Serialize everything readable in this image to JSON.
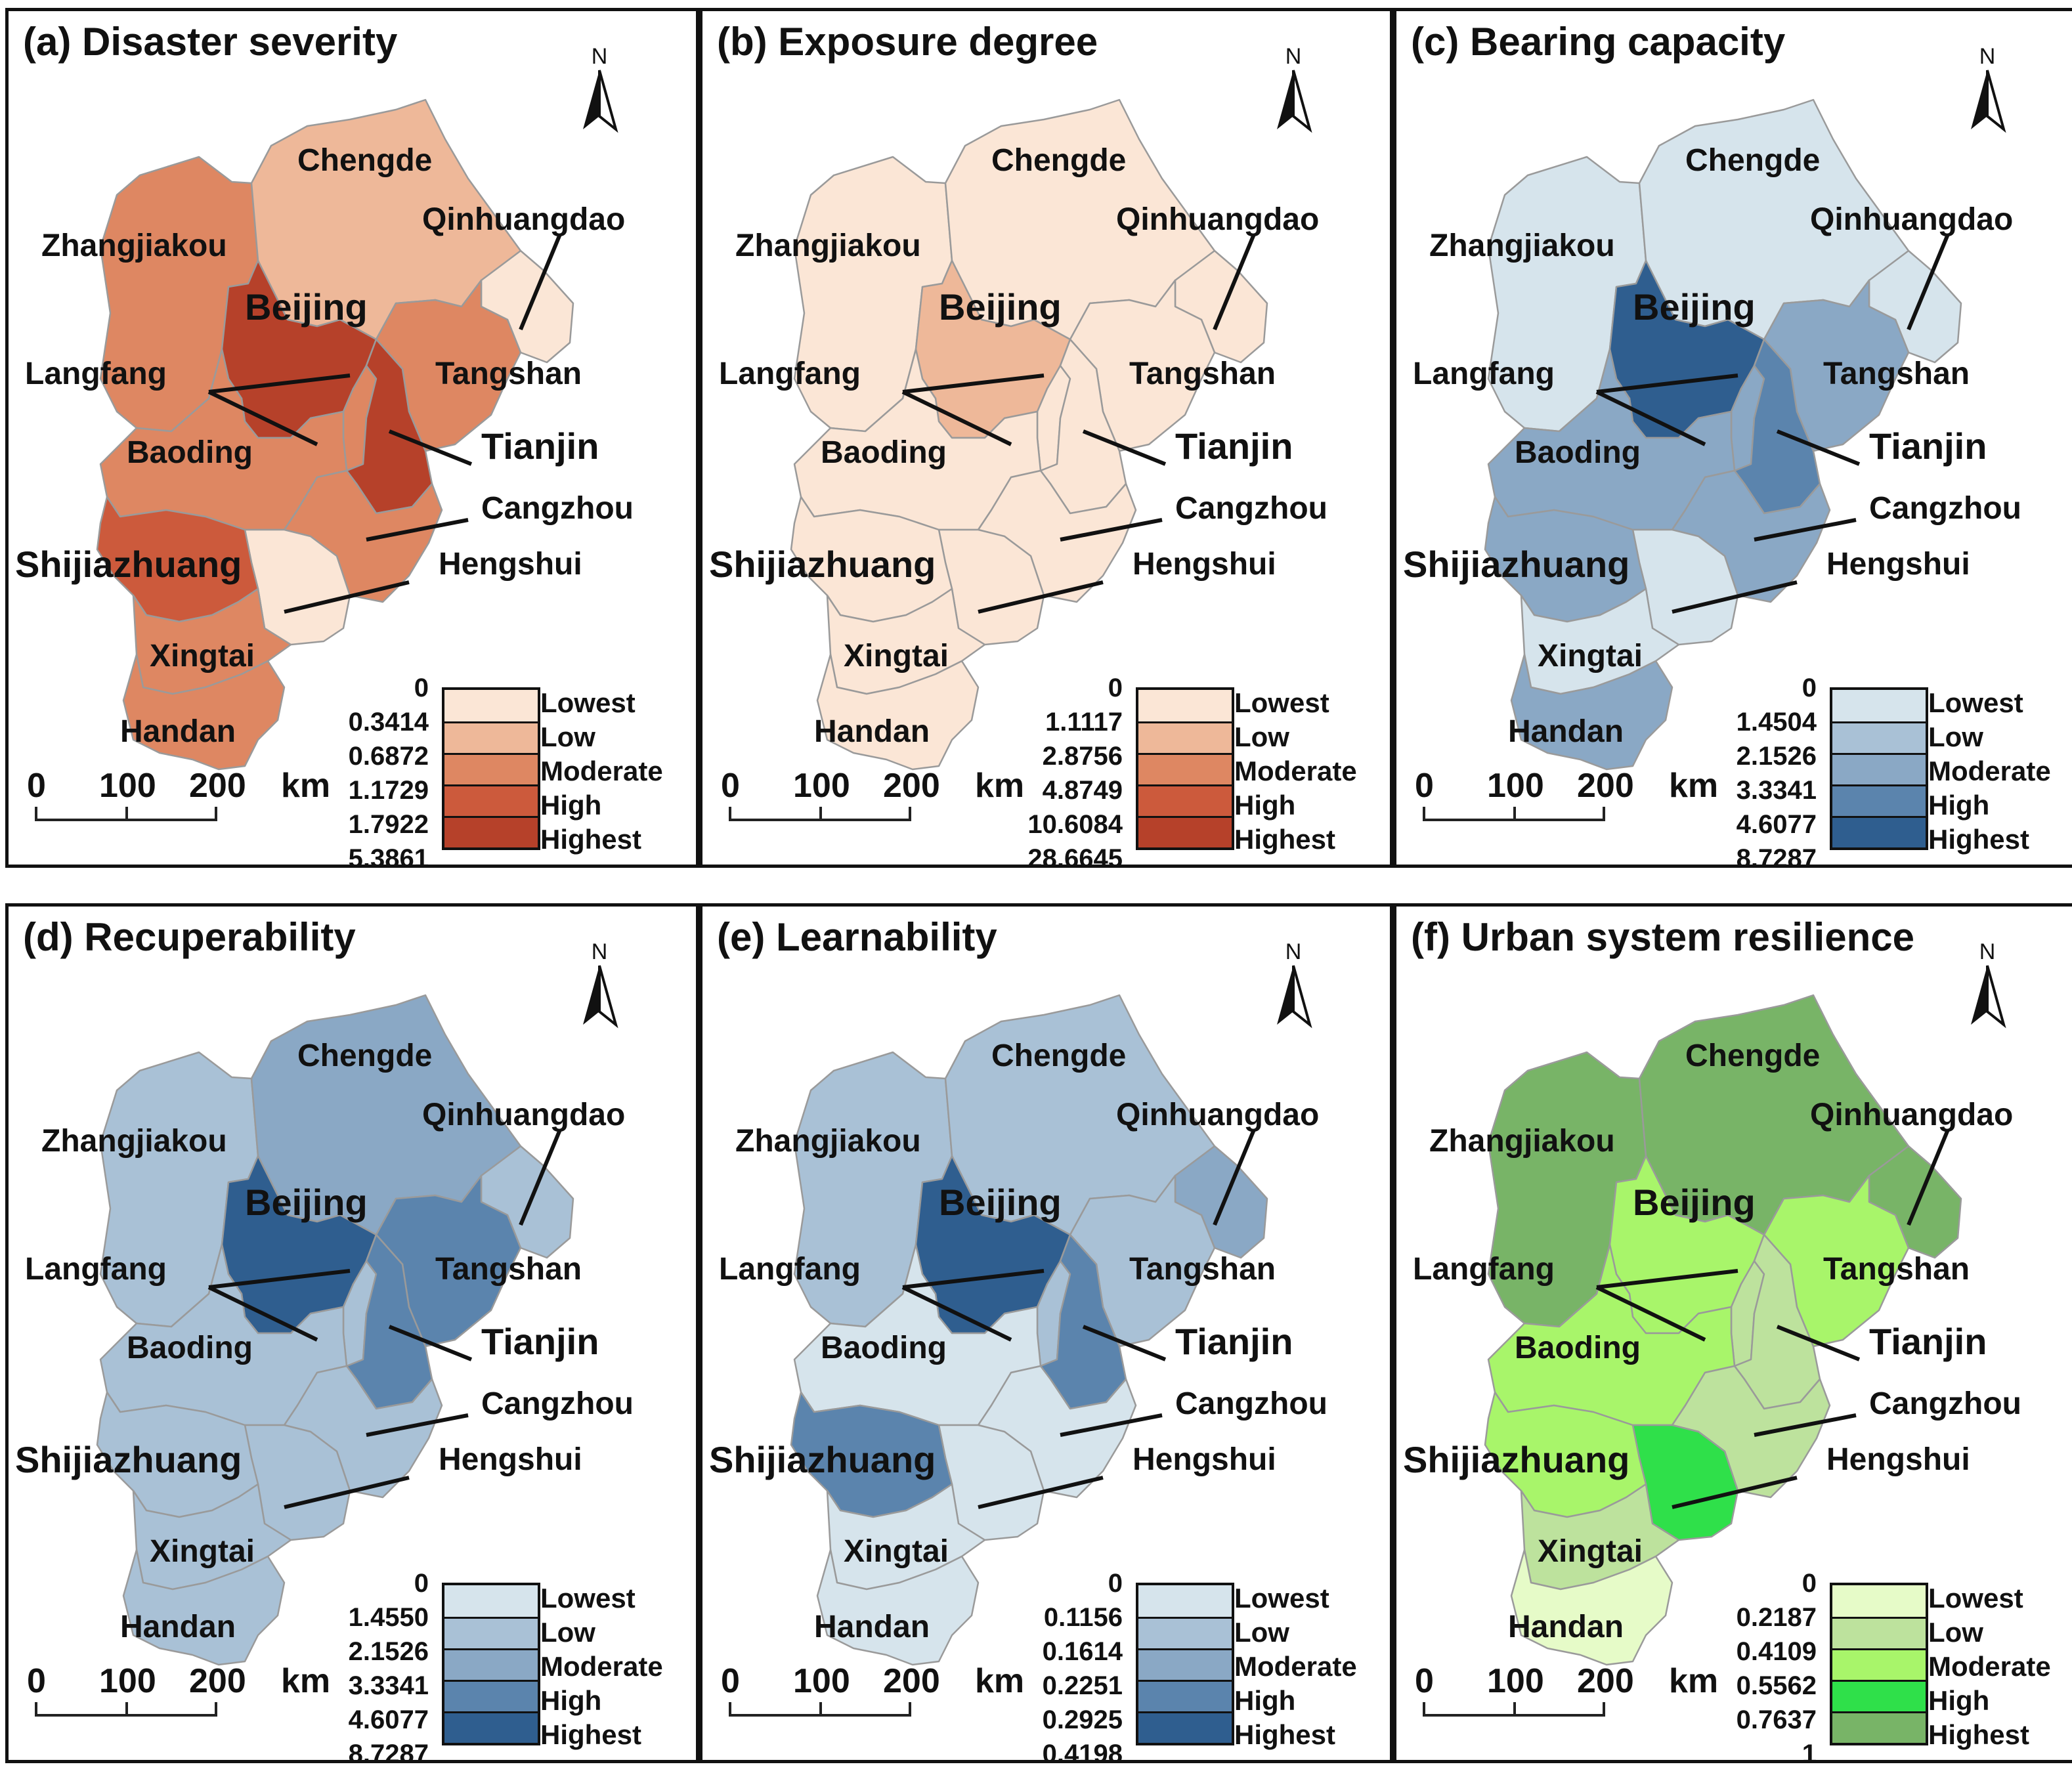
{
  "colors": {
    "red": [
      "#fbe6d6",
      "#eeb899",
      "#de8762",
      "#cc5a3c",
      "#b6412a"
    ],
    "blue": [
      "#d6e4ec",
      "#a9c1d6",
      "#8aa8c5",
      "#5b84ad",
      "#2f5e8f"
    ],
    "green": [
      "#e6fbc8",
      "#bde29d",
      "#a8f56a",
      "#2fe04a",
      "#78b467"
    ],
    "line": "#111111",
    "boundary": "#9a9a9a"
  },
  "cities": {
    "chengde": "Chengde",
    "qinhuangdao": "Qinhuangdao",
    "zhangjiakou": "Zhangjiakou",
    "beijing": "Beijing",
    "langfang": "Langfang",
    "tangshan": "Tangshan",
    "tianjin": "Tianjin",
    "baoding": "Baoding",
    "cangzhou": "Cangzhou",
    "shijiazhuang": "Shijiazhuang",
    "hengshui": "Hengshui",
    "xingtai": "Xingtai",
    "handan": "Handan"
  },
  "north_label": "N",
  "scale": {
    "zero": "0",
    "mid": "100",
    "max": "200",
    "unit": "km"
  },
  "legend_classes": [
    "Lowest",
    "Low",
    "Moderate",
    "High",
    "Highest"
  ],
  "panels": [
    {
      "title": "(a) Disaster severity",
      "scheme": "red",
      "breaks": [
        "0",
        "0.3414",
        "0.6872",
        "1.1729",
        "1.7922",
        "5.3861"
      ],
      "levels": {
        "chengde": 1,
        "qinhuangdao": 0,
        "zhangjiakou": 2,
        "beijing": 4,
        "langfang": 2,
        "tangshan": 2,
        "tianjin": 4,
        "baoding": 2,
        "cangzhou": 2,
        "shijiazhuang": 3,
        "hengshui": 0,
        "xingtai": 2,
        "handan": 2
      }
    },
    {
      "title": "(b) Exposure degree",
      "scheme": "red",
      "breaks": [
        "0",
        "1.1117",
        "2.8756",
        "4.8749",
        "10.6084",
        "28.6645"
      ],
      "levels": {
        "chengde": 0,
        "qinhuangdao": 0,
        "zhangjiakou": 0,
        "beijing": 1,
        "langfang": 0,
        "tangshan": 0,
        "tianjin": 0,
        "baoding": 0,
        "cangzhou": 0,
        "shijiazhuang": 0,
        "hengshui": 0,
        "xingtai": 0,
        "handan": 0
      }
    },
    {
      "title": "(c) Bearing capacity",
      "scheme": "blue",
      "breaks": [
        "0",
        "1.4504",
        "2.1526",
        "3.3341",
        "4.6077",
        "8.7287"
      ],
      "levels": {
        "chengde": 0,
        "qinhuangdao": 0,
        "zhangjiakou": 0,
        "beijing": 4,
        "langfang": 2,
        "tangshan": 2,
        "tianjin": 3,
        "baoding": 2,
        "cangzhou": 2,
        "shijiazhuang": 2,
        "hengshui": 0,
        "xingtai": 0,
        "handan": 2
      }
    },
    {
      "title": "(d) Recuperability",
      "scheme": "blue",
      "breaks": [
        "0",
        "1.4550",
        "2.1526",
        "3.3341",
        "4.6077",
        "8.7287"
      ],
      "levels": {
        "chengde": 2,
        "qinhuangdao": 1,
        "zhangjiakou": 1,
        "beijing": 4,
        "langfang": 1,
        "tangshan": 3,
        "tianjin": 3,
        "baoding": 1,
        "cangzhou": 1,
        "shijiazhuang": 1,
        "hengshui": 1,
        "xingtai": 1,
        "handan": 1
      }
    },
    {
      "title": "(e) Learnability",
      "scheme": "blue",
      "breaks": [
        "0",
        "0.1156",
        "0.1614",
        "0.2251",
        "0.2925",
        "0.4198"
      ],
      "levels": {
        "chengde": 1,
        "qinhuangdao": 2,
        "zhangjiakou": 1,
        "beijing": 4,
        "langfang": 1,
        "tangshan": 1,
        "tianjin": 3,
        "baoding": 0,
        "cangzhou": 0,
        "shijiazhuang": 3,
        "hengshui": 0,
        "xingtai": 0,
        "handan": 0
      }
    },
    {
      "title": "(f) Urban system resilience",
      "scheme": "green",
      "breaks": [
        "0",
        "0.2187",
        "0.4109",
        "0.5562",
        "0.7637",
        "1"
      ],
      "levels": {
        "chengde": 4,
        "qinhuangdao": 4,
        "zhangjiakou": 4,
        "beijing": 2,
        "langfang": 1,
        "tangshan": 2,
        "tianjin": 1,
        "baoding": 2,
        "cangzhou": 1,
        "shijiazhuang": 2,
        "hengshui": 3,
        "xingtai": 1,
        "handan": 0
      }
    }
  ]
}
